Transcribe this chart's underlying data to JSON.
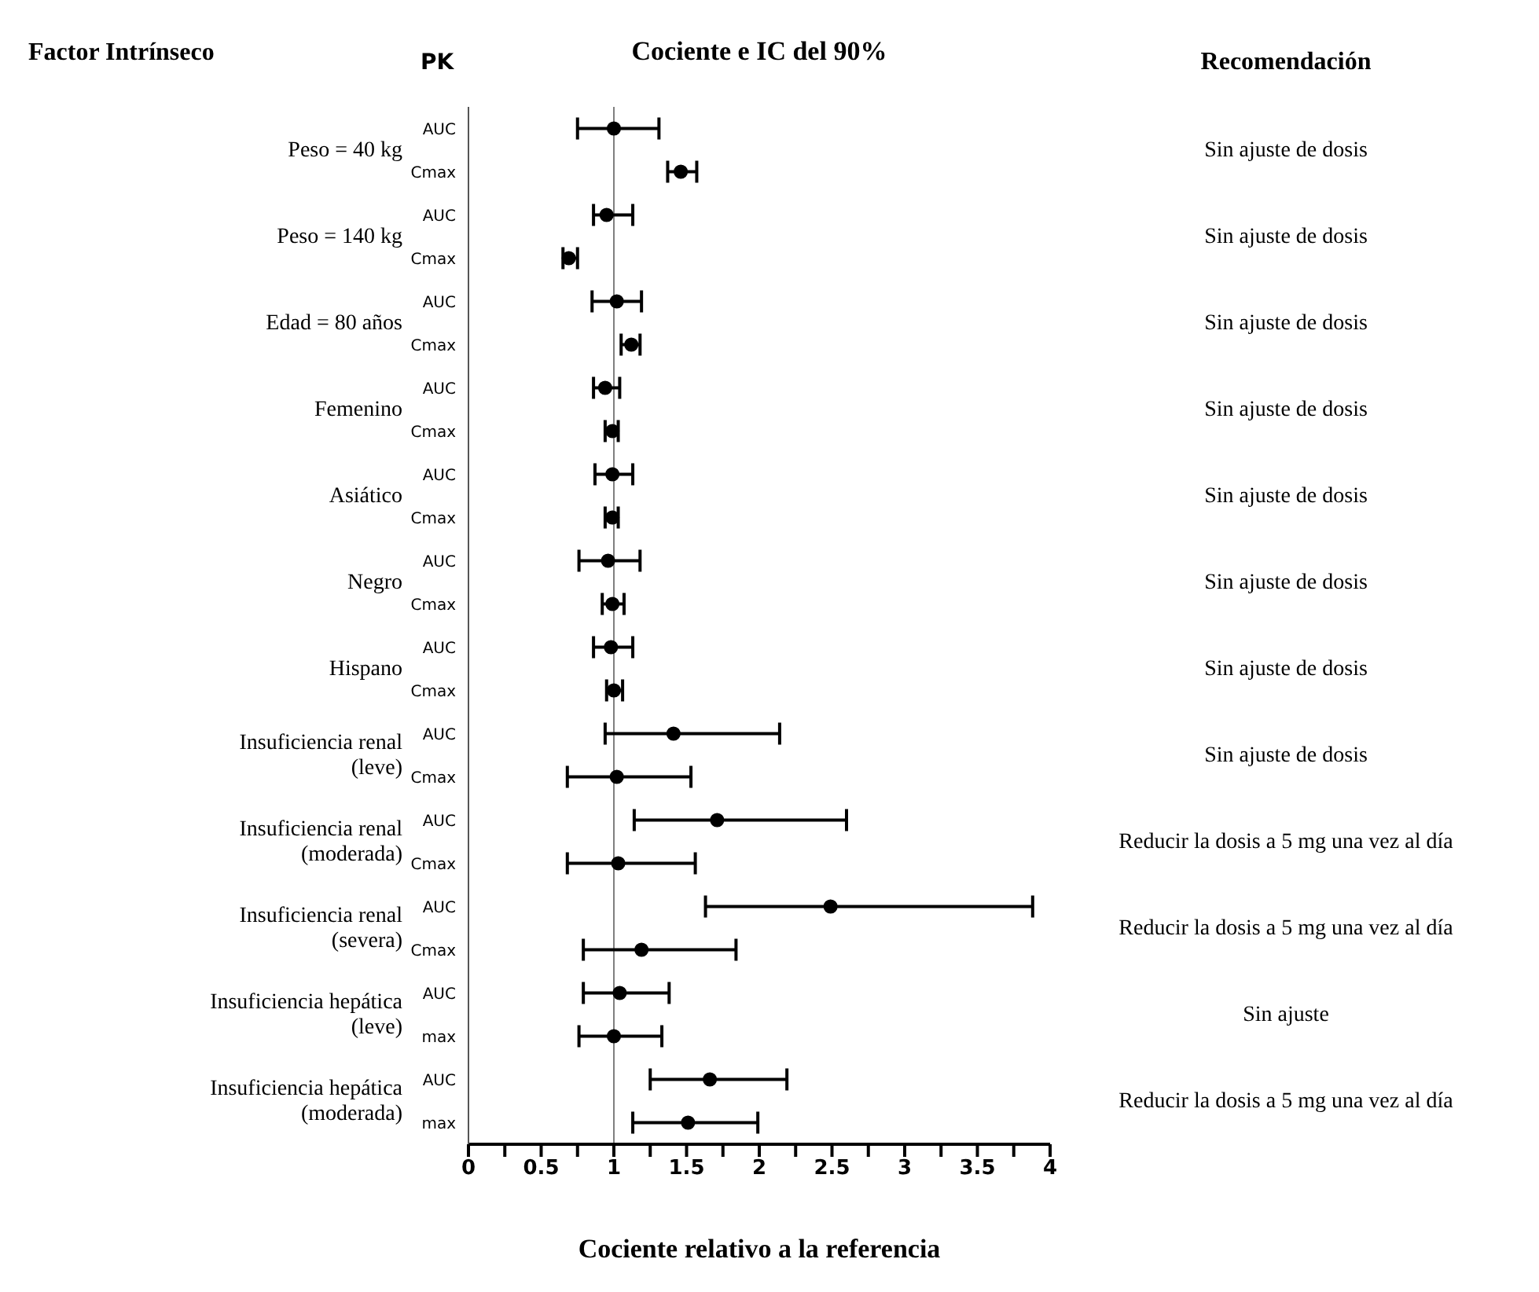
{
  "chart_data": {
    "type": "scatter",
    "orientation": "horizontal",
    "title": "Cociente e IC del 90%",
    "xlabel": "Cociente relativo a la referencia",
    "categories": [
      "AUC",
      "Cmax",
      "AUC",
      "Cmax",
      "AUC",
      "Cmax",
      "AUC",
      "Cmax",
      "AUC",
      "Cmax",
      "AUC",
      "Cmax",
      "AUC",
      "Cmax",
      "AUC",
      "Cmax",
      "AUC",
      "Cmax",
      "AUC",
      "Cmax",
      "AUC",
      "max",
      "AUC",
      "max"
    ],
    "color": "#000000",
    "values": [
      1.0,
      1.46,
      0.95,
      0.69,
      1.02,
      1.12,
      0.94,
      0.99,
      0.99,
      0.99,
      0.96,
      0.99,
      0.98,
      1.0,
      1.41,
      1.02,
      1.71,
      1.03,
      2.49,
      1.19,
      1.04,
      1.0,
      1.66,
      1.51
    ],
    "errors": [
      [
        0.75,
        1.31
      ],
      [
        1.37,
        1.57
      ],
      [
        0.86,
        1.13
      ],
      [
        0.65,
        0.75
      ],
      [
        0.85,
        1.19
      ],
      [
        1.05,
        1.18
      ],
      [
        0.86,
        1.04
      ],
      [
        0.94,
        1.03
      ],
      [
        0.87,
        1.13
      ],
      [
        0.94,
        1.03
      ],
      [
        0.76,
        1.18
      ],
      [
        0.92,
        1.07
      ],
      [
        0.86,
        1.13
      ],
      [
        0.95,
        1.06
      ],
      [
        0.94,
        2.14
      ],
      [
        0.68,
        1.53
      ],
      [
        1.14,
        2.6
      ],
      [
        0.68,
        1.56
      ],
      [
        1.63,
        3.88
      ],
      [
        0.79,
        1.84
      ],
      [
        0.79,
        1.38
      ],
      [
        0.76,
        1.33
      ],
      [
        1.25,
        2.19
      ],
      [
        1.13,
        1.99
      ]
    ],
    "xlim": [
      0,
      4
    ],
    "xticks": [
      0,
      {
        "value": 0.25,
        "label": null
      },
      0.5,
      {
        "value": 0.75,
        "label": null
      },
      1,
      {
        "value": 1.25,
        "label": null
      },
      1.5,
      {
        "value": 1.75,
        "label": null
      },
      2,
      {
        "value": 2.25,
        "label": null
      },
      2.5,
      {
        "value": 2.75,
        "label": null
      },
      3,
      {
        "value": 3.25,
        "label": null
      },
      3.5,
      {
        "value": 3.75,
        "label": null
      },
      4
    ],
    "ref_lines": [
      {
        "axis": "x",
        "value": 1,
        "color": "#808080"
      }
    ],
    "marker": "circle",
    "grid": false,
    "legend": false,
    "annotations": [
      "Factor Intrínseco",
      "PK",
      "Recomendación",
      "Peso = 40 kg",
      "Peso = 140 kg",
      "Edad = 80 años",
      "Femenino",
      "Asiático",
      "Negro",
      "Hispano",
      "Insuficiencia renal\n(leve)",
      "Insuficiencia renal\n(moderada)",
      "Insuficiencia renal\n(severa)",
      "Insuficiencia hepática\n(leve)",
      "Insuficiencia hepática\n(moderada)",
      "Sin ajuste de dosis",
      "Sin ajuste de dosis",
      "Sin ajuste de dosis",
      "Sin ajuste de dosis",
      "Sin ajuste de dosis",
      "Sin ajuste de dosis",
      "Sin ajuste de dosis",
      "Sin ajuste de dosis",
      "Reducir la dosis a 5 mg una vez al día",
      "Reducir la dosis a 5 mg una vez al día",
      "Sin ajuste",
      "Reducir la dosis a 5 mg una vez al día"
    ]
  }
}
